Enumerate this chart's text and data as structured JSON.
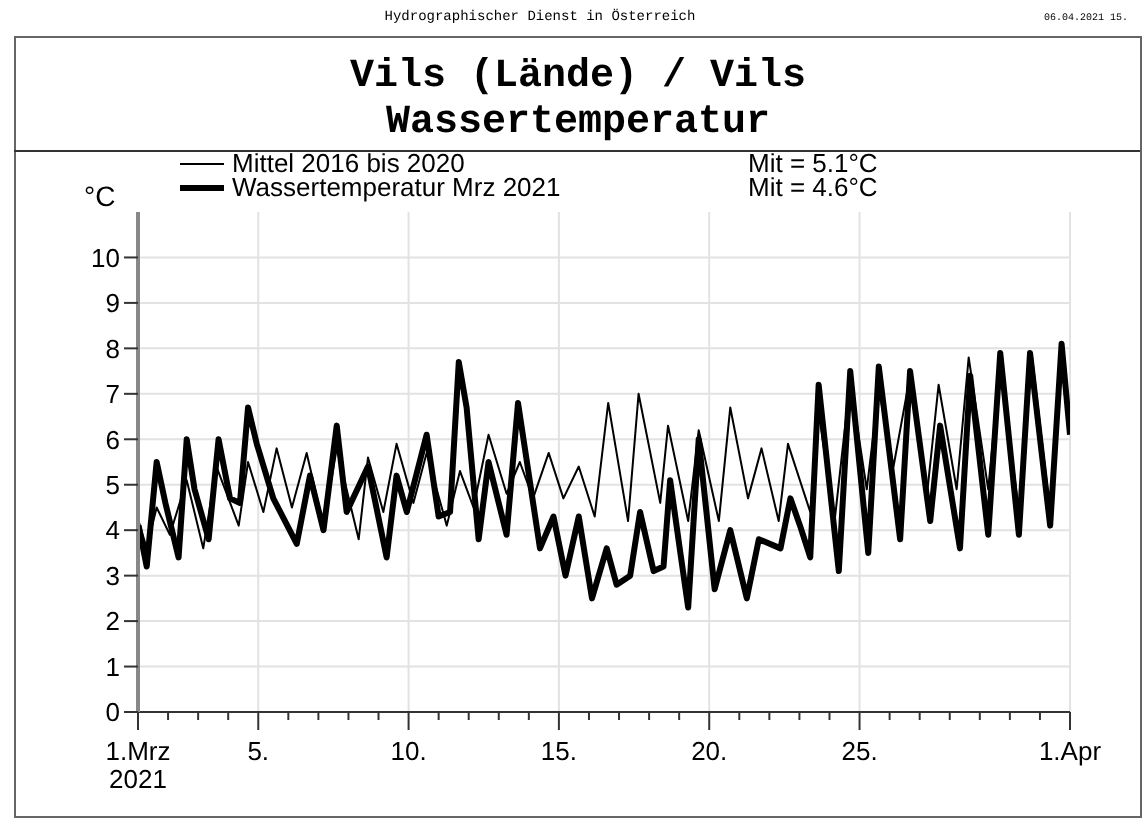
{
  "chart_data": {
    "type": "line",
    "title": "Vils (Lände) / Vils",
    "subtitle": "Wassertemperatur",
    "ylabel": "°C",
    "annotations": [
      "Hydrographischer Dienst in Österreich",
      "06.04.2021 15.",
      "Mit = 5.1°C",
      "Mit = 4.6°C"
    ],
    "xlim": [
      1,
      32
    ],
    "ylim": [
      0,
      11
    ],
    "yticks": [
      0,
      1,
      2,
      3,
      4,
      5,
      6,
      7,
      8,
      9,
      10
    ],
    "xticks": [
      {
        "value": 1,
        "label": "1.Mrz\n2021"
      },
      {
        "value": 2,
        "label": null
      },
      {
        "value": 3,
        "label": null
      },
      {
        "value": 4,
        "label": null
      },
      {
        "value": 5,
        "label": "5."
      },
      {
        "value": 6,
        "label": null
      },
      {
        "value": 7,
        "label": null
      },
      {
        "value": 8,
        "label": null
      },
      {
        "value": 9,
        "label": null
      },
      {
        "value": 10,
        "label": "10."
      },
      {
        "value": 11,
        "label": null
      },
      {
        "value": 12,
        "label": null
      },
      {
        "value": 13,
        "label": null
      },
      {
        "value": 14,
        "label": null
      },
      {
        "value": 15,
        "label": "15."
      },
      {
        "value": 16,
        "label": null
      },
      {
        "value": 17,
        "label": null
      },
      {
        "value": 18,
        "label": null
      },
      {
        "value": 19,
        "label": null
      },
      {
        "value": 20,
        "label": "20."
      },
      {
        "value": 21,
        "label": null
      },
      {
        "value": 22,
        "label": null
      },
      {
        "value": 23,
        "label": null
      },
      {
        "value": 24,
        "label": null
      },
      {
        "value": 25,
        "label": "25."
      },
      {
        "value": 26,
        "label": null
      },
      {
        "value": 27,
        "label": null
      },
      {
        "value": 28,
        "label": null
      },
      {
        "value": 29,
        "label": null
      },
      {
        "value": 30,
        "label": null
      },
      {
        "value": 31,
        "label": null
      },
      {
        "value": 32,
        "label": "1.Apr"
      }
    ],
    "grid": true,
    "legend": "top left",
    "marker": "none",
    "line_style": "solid",
    "series": [
      {
        "name": "Mittel 2016 bis 2020",
        "color": "#000000",
        "x": [
          1.02,
          1.29,
          1.62,
          2.06,
          2.62,
          3.17,
          3.61,
          4.35,
          4.66,
          5.17,
          5.61,
          6.12,
          6.61,
          7.17,
          7.61,
          8.34,
          8.65,
          9.16,
          9.6,
          10.16,
          10.6,
          11.27,
          11.71,
          12.16,
          12.66,
          13.26,
          13.7,
          14.14,
          14.66,
          15.15,
          15.66,
          16.19,
          16.64,
          17.3,
          17.65,
          18.37,
          18.63,
          19.3,
          19.65,
          20.32,
          20.7,
          21.29,
          21.74,
          22.31,
          22.62,
          23.36,
          23.64,
          24.17,
          24.69,
          25.24,
          25.64,
          26.13,
          26.68,
          27.23,
          27.63,
          28.23,
          28.63,
          29.28,
          29.68,
          30.3,
          30.74,
          31.34,
          31.72,
          32.0
        ],
        "values": [
          4.2,
          3.6,
          4.5,
          3.9,
          5.1,
          3.6,
          5.4,
          4.1,
          5.5,
          4.4,
          5.8,
          4.5,
          5.7,
          4.1,
          5.8,
          3.8,
          5.6,
          4.4,
          5.9,
          4.6,
          5.7,
          4.1,
          5.3,
          4.5,
          6.1,
          4.8,
          5.5,
          4.7,
          5.7,
          4.7,
          5.4,
          4.3,
          6.8,
          4.2,
          7.0,
          4.6,
          6.3,
          4.2,
          6.2,
          4.2,
          6.7,
          4.7,
          5.8,
          4.2,
          5.9,
          4.4,
          6.6,
          4.2,
          7.3,
          4.9,
          7.1,
          5.4,
          7.4,
          4.7,
          7.2,
          4.9,
          7.8,
          4.9,
          7.7,
          4.4,
          7.8,
          4.4,
          8.0,
          6.2
        ]
      },
      {
        "name": "Wassertemperatur Mrz 2021",
        "color": "#000000",
        "x": [
          1.02,
          1.29,
          1.62,
          1.91,
          2.35,
          2.62,
          2.88,
          3.35,
          3.68,
          4.06,
          4.39,
          4.66,
          4.95,
          5.5,
          6.28,
          6.72,
          7.17,
          7.61,
          7.94,
          8.65,
          9.27,
          9.6,
          9.94,
          10.6,
          11.0,
          11.38,
          11.67,
          11.93,
          12.33,
          12.66,
          13.26,
          13.64,
          14.37,
          14.82,
          15.22,
          15.66,
          16.1,
          16.59,
          16.92,
          17.37,
          17.7,
          18.15,
          18.48,
          18.7,
          19.04,
          19.3,
          19.65,
          20.18,
          20.7,
          21.25,
          21.65,
          22.37,
          22.7,
          23.02,
          23.36,
          23.64,
          24.31,
          24.69,
          25.29,
          25.64,
          26.35,
          26.68,
          27.35,
          27.68,
          28.34,
          28.68,
          29.28,
          29.68,
          30.3,
          30.67,
          31.34,
          31.72,
          32.0
        ],
        "values": [
          4.1,
          3.2,
          5.5,
          4.6,
          3.4,
          6.0,
          4.9,
          3.8,
          6.0,
          4.7,
          4.6,
          6.7,
          5.9,
          4.7,
          3.7,
          5.2,
          4.0,
          6.3,
          4.4,
          5.4,
          3.4,
          5.2,
          4.4,
          6.1,
          4.3,
          4.4,
          7.7,
          6.7,
          3.8,
          5.5,
          3.9,
          6.8,
          3.6,
          4.3,
          3.0,
          4.3,
          2.5,
          3.6,
          2.8,
          3.0,
          4.4,
          3.1,
          3.2,
          5.1,
          3.5,
          2.3,
          6.0,
          2.7,
          4.0,
          2.5,
          3.8,
          3.6,
          4.7,
          4.1,
          3.4,
          7.2,
          3.1,
          7.5,
          3.5,
          7.6,
          3.8,
          7.5,
          4.2,
          6.3,
          3.6,
          7.4,
          3.9,
          7.9,
          3.9,
          7.9,
          4.1,
          8.1,
          6.1
        ]
      }
    ]
  }
}
